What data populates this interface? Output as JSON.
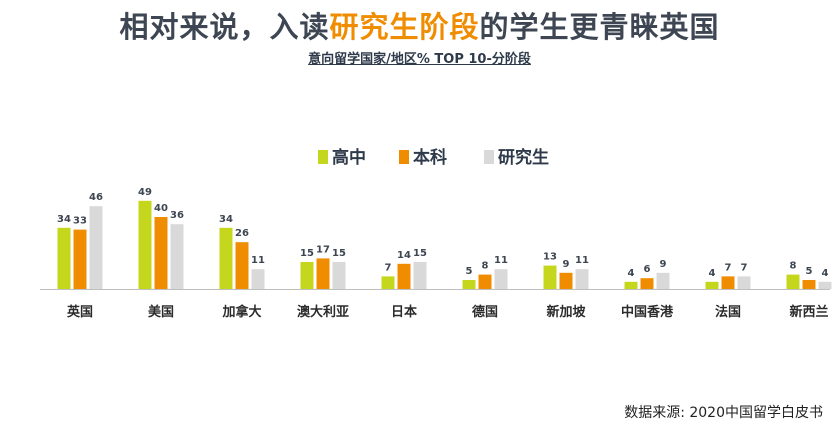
{
  "page": {
    "title_pre": "相对来说，入读",
    "title_highlight": "研究生阶段",
    "title_post": "的学生更青睐英国",
    "subtitle": "意向留学国家/地区% TOP 10-分阶段",
    "source": "数据来源: 2020中国留学白皮书"
  },
  "colors": {
    "high_school": "#c5d71c",
    "undergrad": "#f08c00",
    "graduate": "#d9d9d9",
    "title": "#3d4652",
    "highlight": "#f08c00"
  },
  "chart_data": {
    "type": "bar",
    "title": "意向留学国家/地区% TOP 10-分阶段",
    "legend_position": "top",
    "grid": false,
    "ylim": [
      0,
      50
    ],
    "categories": [
      "英国",
      "美国",
      "加拿大",
      "澳大利亚",
      "日本",
      "德国",
      "新加坡",
      "中国香港",
      "法国",
      "新西兰"
    ],
    "series": [
      {
        "name": "高中",
        "values": [
          34,
          49,
          34,
          15,
          7,
          5,
          13,
          4,
          4,
          8
        ]
      },
      {
        "name": "本科",
        "values": [
          33,
          40,
          26,
          17,
          14,
          8,
          9,
          6,
          7,
          5
        ]
      },
      {
        "name": "研究生",
        "values": [
          46,
          36,
          11,
          15,
          15,
          11,
          11,
          9,
          7,
          4
        ]
      }
    ]
  }
}
